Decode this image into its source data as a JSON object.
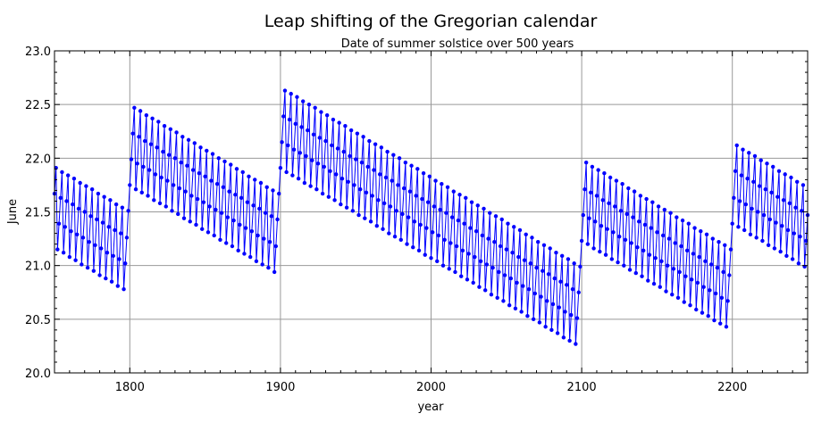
{
  "chart_data": {
    "type": "line",
    "title": "Leap shifting of the Gregorian calendar",
    "subtitle": "Date of summer solstice over 500 years",
    "xlabel": "year",
    "ylabel": "June",
    "xlim": [
      1750,
      2250
    ],
    "ylim": [
      20.0,
      23.0
    ],
    "grid": true,
    "x_ticks": [
      "1800",
      "1900",
      "2000",
      "2100",
      "2200"
    ],
    "y_ticks": [
      "20.0",
      "20.5",
      "21.0",
      "21.5",
      "22.0",
      "22.5",
      "23.0"
    ],
    "line_color": "#0000ff",
    "marker": "circle",
    "x_start": 1750,
    "x_step": 1,
    "values": [
      21.67,
      21.91,
      21.15,
      21.39,
      21.63,
      21.87,
      21.12,
      21.36,
      21.6,
      21.84,
      21.08,
      21.32,
      21.57,
      21.81,
      21.05,
      21.29,
      21.53,
      21.77,
      21.01,
      21.26,
      21.5,
      21.74,
      20.98,
      21.22,
      21.46,
      21.71,
      20.95,
      21.19,
      21.43,
      21.67,
      20.91,
      21.16,
      21.4,
      21.64,
      20.88,
      21.12,
      21.36,
      21.61,
      20.85,
      21.09,
      21.33,
      21.57,
      20.81,
      21.06,
      21.3,
      21.54,
      20.78,
      21.02,
      21.26,
      21.51,
      21.75,
      21.99,
      22.23,
      22.47,
      21.71,
      21.95,
      22.2,
      22.44,
      21.68,
      21.92,
      22.16,
      22.4,
      21.65,
      21.89,
      22.13,
      22.37,
      21.61,
      21.85,
      22.1,
      22.34,
      21.58,
      21.82,
      22.06,
      22.3,
      21.55,
      21.79,
      22.03,
      22.27,
      21.51,
      21.75,
      22.0,
      22.24,
      21.48,
      21.72,
      21.96,
      22.2,
      21.44,
      21.69,
      21.93,
      22.17,
      21.41,
      21.65,
      21.89,
      22.14,
      21.38,
      21.62,
      21.86,
      22.1,
      21.34,
      21.59,
      21.83,
      22.07,
      21.31,
      21.55,
      21.79,
      22.04,
      21.28,
      21.52,
      21.76,
      22.0,
      21.24,
      21.49,
      21.73,
      21.97,
      21.21,
      21.45,
      21.69,
      21.94,
      21.18,
      21.42,
      21.66,
      21.9,
      21.14,
      21.38,
      21.63,
      21.87,
      21.11,
      21.35,
      21.59,
      21.83,
      21.08,
      21.32,
      21.56,
      21.8,
      21.04,
      21.28,
      21.53,
      21.77,
      21.01,
      21.25,
      21.49,
      21.73,
      20.98,
      21.22,
      21.46,
      21.7,
      20.94,
      21.18,
      21.43,
      21.67,
      21.91,
      22.15,
      22.39,
      22.63,
      21.87,
      22.12,
      22.36,
      22.6,
      21.84,
      22.08,
      22.32,
      22.57,
      21.81,
      22.05,
      22.29,
      22.53,
      21.77,
      22.02,
      22.26,
      22.5,
      21.74,
      21.98,
      22.22,
      22.47,
      21.71,
      21.95,
      22.19,
      22.43,
      21.67,
      21.92,
      22.16,
      22.4,
      21.64,
      21.88,
      22.12,
      22.36,
      21.61,
      21.85,
      22.09,
      22.33,
      21.57,
      21.81,
      22.06,
      22.3,
      21.54,
      21.78,
      22.02,
      22.26,
      21.51,
      21.75,
      21.99,
      22.23,
      21.47,
      21.71,
      21.96,
      22.2,
      21.44,
      21.68,
      21.92,
      22.16,
      21.41,
      21.65,
      21.89,
      22.13,
      21.37,
      21.61,
      21.85,
      22.1,
      21.34,
      21.58,
      21.82,
      22.06,
      21.3,
      21.55,
      21.79,
      22.03,
      21.27,
      21.51,
      21.75,
      22.0,
      21.24,
      21.48,
      21.72,
      21.96,
      21.2,
      21.45,
      21.69,
      21.93,
      21.17,
      21.41,
      21.65,
      21.9,
      21.14,
      21.38,
      21.62,
      21.86,
      21.1,
      21.35,
      21.59,
      21.83,
      21.07,
      21.31,
      21.55,
      21.79,
      21.04,
      21.28,
      21.52,
      21.76,
      21.0,
      21.24,
      21.49,
      21.73,
      20.97,
      21.21,
      21.45,
      21.69,
      20.94,
      21.18,
      21.42,
      21.66,
      20.9,
      21.14,
      21.39,
      21.63,
      20.87,
      21.11,
      21.35,
      21.59,
      20.84,
      21.08,
      21.32,
      21.56,
      20.8,
      21.04,
      21.28,
      21.53,
      20.77,
      21.01,
      21.25,
      21.49,
      20.73,
      20.98,
      21.22,
      21.46,
      20.7,
      20.94,
      21.18,
      21.43,
      20.67,
      20.91,
      21.15,
      21.39,
      20.63,
      20.88,
      21.12,
      21.36,
      20.6,
      20.84,
      21.08,
      21.33,
      20.57,
      20.81,
      21.05,
      21.29,
      20.53,
      20.78,
      21.02,
      21.26,
      20.5,
      20.74,
      20.98,
      21.22,
      20.47,
      20.71,
      20.95,
      21.19,
      20.43,
      20.67,
      20.92,
      21.16,
      20.4,
      20.64,
      20.88,
      21.12,
      20.37,
      20.61,
      20.85,
      21.09,
      20.33,
      20.57,
      20.82,
      21.06,
      20.3,
      20.54,
      20.78,
      21.02,
      20.27,
      20.51,
      20.75,
      20.99,
      21.23,
      21.47,
      21.71,
      21.96,
      21.2,
      21.44,
      21.68,
      21.92,
      21.16,
      21.41,
      21.65,
      21.89,
      21.13,
      21.37,
      21.61,
      21.86,
      21.1,
      21.34,
      21.58,
      21.82,
      21.06,
      21.31,
      21.55,
      21.79,
      21.03,
      21.27,
      21.51,
      21.76,
      21.0,
      21.24,
      21.48,
      21.72,
      20.96,
      21.21,
      21.45,
      21.69,
      20.93,
      21.17,
      21.41,
      21.65,
      20.9,
      21.14,
      21.38,
      21.62,
      20.86,
      21.1,
      21.35,
      21.59,
      20.83,
      21.07,
      21.31,
      21.55,
      20.8,
      21.04,
      21.28,
      21.52,
      20.76,
      21.0,
      21.25,
      21.49,
      20.73,
      20.97,
      21.21,
      21.45,
      20.7,
      20.94,
      21.18,
      21.42,
      20.66,
      20.9,
      21.14,
      21.39,
      20.63,
      20.87,
      21.11,
      21.35,
      20.59,
      20.84,
      21.08,
      21.32,
      20.56,
      20.8,
      21.04,
      21.29,
      20.53,
      20.77,
      21.01,
      21.25,
      20.49,
      20.74,
      20.98,
      21.22,
      20.46,
      20.7,
      20.94,
      21.19,
      20.43,
      20.67,
      20.91,
      21.15,
      21.39,
      21.63,
      21.88,
      22.12,
      21.36,
      21.6,
      21.84,
      22.08,
      21.33,
      21.57,
      21.81,
      22.05,
      21.29,
      21.53,
      21.78,
      22.02,
      21.26,
      21.5,
      21.74,
      21.98,
      21.23,
      21.47,
      21.71,
      21.95,
      21.19,
      21.43,
      21.68,
      21.92,
      21.16,
      21.4,
      21.64,
      21.88,
      21.13,
      21.37,
      21.61,
      21.85,
      21.09,
      21.33,
      21.58,
      21.82,
      21.06,
      21.3,
      21.54,
      21.78,
      21.02,
      21.27,
      21.51,
      21.75,
      20.99,
      21.23,
      21.47
    ]
  }
}
